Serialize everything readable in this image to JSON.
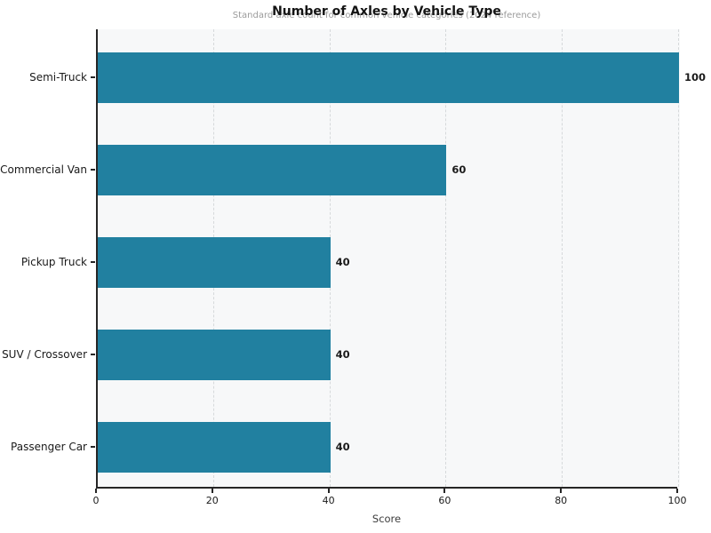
{
  "chart_data": {
    "type": "bar",
    "orientation": "horizontal",
    "title": "Number of Axles by Vehicle Type",
    "subtitle": "Standard axle count for common vehicle categories (2024 reference)",
    "categories": [
      "Semi-Truck",
      "Commercial Van",
      "Pickup Truck",
      "SUV / Crossover",
      "Passenger Car"
    ],
    "values": [
      100,
      60,
      40,
      40,
      40
    ],
    "value_labels": [
      "100",
      "60",
      "40",
      "40",
      "40"
    ],
    "xlabel": "Score",
    "x_ticks": [
      "0",
      "20",
      "40",
      "60",
      "80",
      "100"
    ],
    "x_tick_values": [
      0,
      20,
      40,
      60,
      80,
      100
    ],
    "xlim": [
      0,
      100
    ],
    "grid": "dashed-vertical",
    "legend": "none",
    "bar_color": "#2180a0",
    "plot_bg": "#f7f8f9",
    "grid_color": "#d6d9db",
    "spine_color": "#262626"
  }
}
